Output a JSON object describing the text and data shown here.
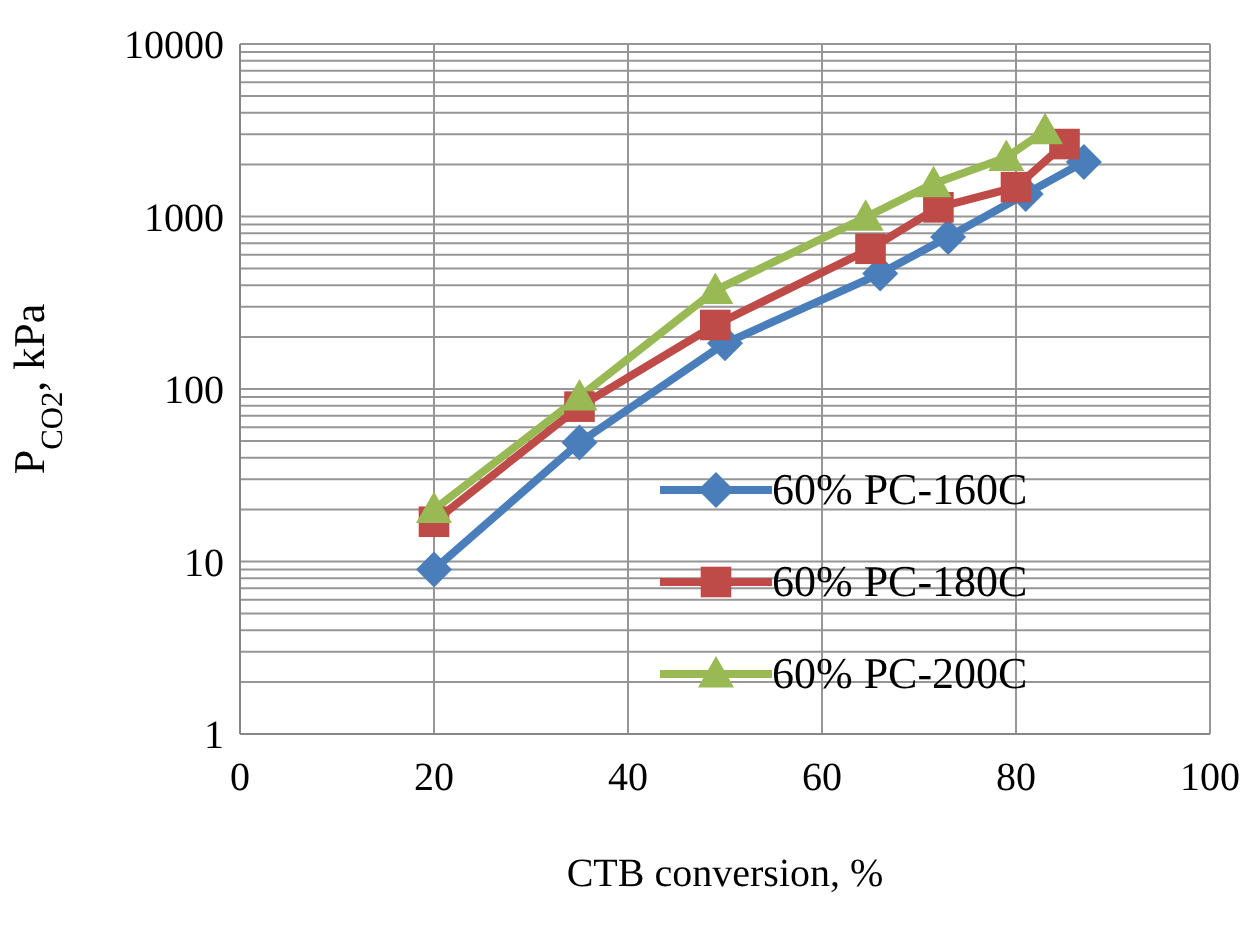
{
  "chart_data": {
    "type": "line",
    "xlabel": "CTB conversion, %",
    "ylabel": "P$_{CO2}$, kPa",
    "log": "y",
    "grid": true,
    "legend": "bottom right",
    "line_style": "solid",
    "xlim": [
      0,
      100
    ],
    "xticks": [
      0,
      20,
      40,
      60,
      80,
      100
    ],
    "ylim": [
      1,
      10000
    ],
    "yticks": [
      1,
      {
        "value": 2,
        "label": null
      },
      {
        "value": 3,
        "label": null
      },
      {
        "value": 4,
        "label": null
      },
      {
        "value": 5,
        "label": null
      },
      {
        "value": 6,
        "label": null
      },
      {
        "value": 7,
        "label": null
      },
      {
        "value": 8,
        "label": null
      },
      {
        "value": 9,
        "label": null
      },
      10,
      {
        "value": 20,
        "label": null
      },
      {
        "value": 30,
        "label": null
      },
      {
        "value": 40,
        "label": null
      },
      {
        "value": 50,
        "label": null
      },
      {
        "value": 60,
        "label": null
      },
      {
        "value": 70,
        "label": null
      },
      {
        "value": 80,
        "label": null
      },
      {
        "value": 90,
        "label": null
      },
      100,
      {
        "value": 200,
        "label": null
      },
      {
        "value": 300,
        "label": null
      },
      {
        "value": 400,
        "label": null
      },
      {
        "value": 500,
        "label": null
      },
      {
        "value": 600,
        "label": null
      },
      {
        "value": 700,
        "label": null
      },
      {
        "value": 800,
        "label": null
      },
      {
        "value": 900,
        "label": null
      },
      1000,
      {
        "value": 2000,
        "label": null
      },
      {
        "value": 3000,
        "label": null
      },
      {
        "value": 4000,
        "label": null
      },
      {
        "value": 5000,
        "label": null
      },
      {
        "value": 6000,
        "label": null
      },
      {
        "value": 7000,
        "label": null
      },
      {
        "value": 8000,
        "label": null
      },
      {
        "value": 9000,
        "label": null
      },
      10000
    ],
    "series": [
      {
        "name": "60% PC-160C",
        "color": "#4a7ebb",
        "marker": "diamond",
        "x": [
          20,
          35,
          50,
          66,
          73,
          81,
          87
        ],
        "values": [
          9,
          49,
          184,
          467,
          760,
          1350,
          2070
        ]
      },
      {
        "name": "60% PC-180C",
        "color": "#be4b48",
        "marker": "square",
        "x": [
          20,
          35,
          49,
          65,
          72,
          80,
          85
        ],
        "values": [
          17,
          79,
          235,
          650,
          1130,
          1480,
          2630
        ]
      },
      {
        "name": "60% PC-200C",
        "color": "#98b954",
        "marker": "triangle",
        "x": [
          20,
          35,
          49,
          64.5,
          71.5,
          79,
          83
        ],
        "values": [
          20,
          90,
          373,
          990,
          1550,
          2200,
          3140
        ]
      }
    ]
  }
}
